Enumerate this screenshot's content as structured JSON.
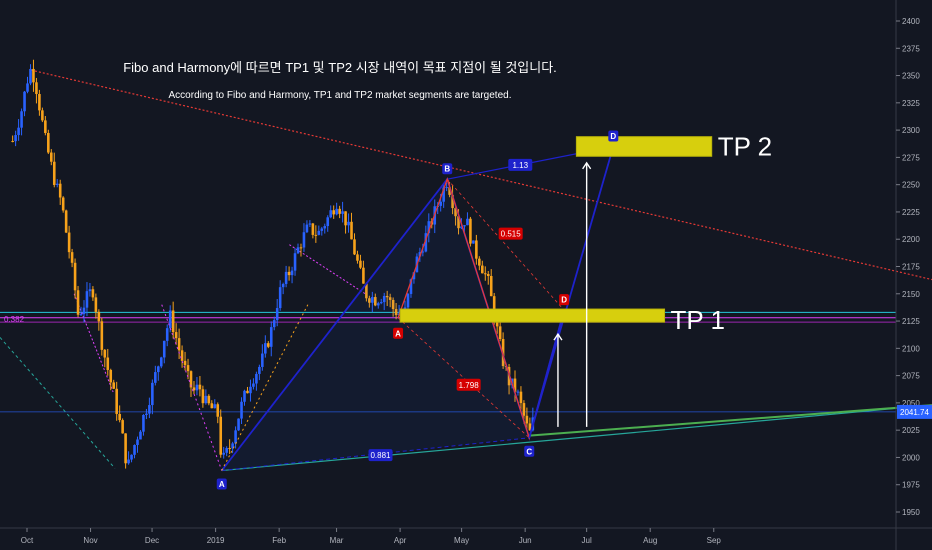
{
  "chart_data": {
    "type": "candlestick",
    "title": "Fibo and Harmony에 따르면 TP1 및 TP2 시장 내역이 목표 지점이 될 것입니다.",
    "subtitle": "According to Fibo and Harmony, TP1 and TP2 market segments are targeted.",
    "xlabel": "",
    "ylabel": "",
    "x_ticks": [
      "Oct",
      "Nov",
      "Dec",
      "2019",
      "Feb",
      "Mar",
      "Apr",
      "May",
      "Jun",
      "Jul",
      "Aug",
      "Sep"
    ],
    "y_ticks": [
      1950,
      1975,
      2000,
      2025,
      2050,
      2075,
      2100,
      2125,
      2150,
      2175,
      2200,
      2225,
      2250,
      2275,
      2300,
      2325,
      2350,
      2375,
      2400
    ],
    "ylim": [
      1940,
      2410
    ],
    "last_price": "2041.74",
    "colors": {
      "up": "#2962ff",
      "down": "#f7a21b",
      "background": "#131722"
    },
    "price_path": [
      [
        "2018-09-24",
        2290
      ],
      [
        "2018-09-28",
        2315
      ],
      [
        "2018-10-01",
        2345
      ],
      [
        "2018-10-03",
        2357
      ],
      [
        "2018-10-05",
        2345
      ],
      [
        "2018-10-10",
        2290
      ],
      [
        "2018-10-15",
        2250
      ],
      [
        "2018-10-18",
        2232
      ],
      [
        "2018-10-24",
        2160
      ],
      [
        "2018-10-26",
        2130
      ],
      [
        "2018-10-30",
        2145
      ],
      [
        "2018-11-02",
        2155
      ],
      [
        "2018-11-07",
        2100
      ],
      [
        "2018-11-12",
        2060
      ],
      [
        "2018-11-16",
        2025
      ],
      [
        "2018-11-19",
        1990
      ],
      [
        "2018-11-23",
        2015
      ],
      [
        "2018-11-29",
        2050
      ],
      [
        "2018-12-04",
        2085
      ],
      [
        "2018-12-07",
        2110
      ],
      [
        "2018-12-10",
        2130
      ],
      [
        "2018-12-14",
        2100
      ],
      [
        "2018-12-18",
        2075
      ],
      [
        "2018-12-21",
        2060
      ],
      [
        "2018-12-24",
        2065
      ],
      [
        "2018-12-27",
        2050
      ],
      [
        "2019-01-02",
        2040
      ],
      [
        "2019-01-04",
        1995
      ],
      [
        "2019-01-08",
        2010
      ],
      [
        "2019-01-14",
        2050
      ],
      [
        "2019-01-18",
        2070
      ],
      [
        "2019-01-23",
        2085
      ],
      [
        "2019-01-28",
        2115
      ],
      [
        "2019-02-01",
        2150
      ],
      [
        "2019-02-06",
        2170
      ],
      [
        "2019-02-11",
        2195
      ],
      [
        "2019-02-15",
        2210
      ],
      [
        "2019-02-20",
        2205
      ],
      [
        "2019-02-25",
        2220
      ],
      [
        "2019-03-01",
        2235
      ],
      [
        "2019-03-06",
        2215
      ],
      [
        "2019-03-11",
        2180
      ],
      [
        "2019-03-15",
        2150
      ],
      [
        "2019-03-20",
        2145
      ],
      [
        "2019-03-25",
        2150
      ],
      [
        "2019-03-29",
        2135
      ],
      [
        "2019-04-03",
        2130
      ],
      [
        "2019-04-08",
        2175
      ],
      [
        "2019-04-12",
        2195
      ],
      [
        "2019-04-17",
        2220
      ],
      [
        "2019-04-22",
        2245
      ],
      [
        "2019-04-24",
        2255
      ],
      [
        "2019-04-26",
        2240
      ],
      [
        "2019-04-30",
        2210
      ],
      [
        "2019-05-03",
        2220
      ],
      [
        "2019-05-07",
        2190
      ],
      [
        "2019-05-10",
        2180
      ],
      [
        "2019-05-14",
        2160
      ],
      [
        "2019-05-17",
        2130
      ],
      [
        "2019-05-21",
        2090
      ],
      [
        "2019-05-24",
        2070
      ],
      [
        "2019-05-28",
        2060
      ],
      [
        "2019-05-31",
        2040
      ],
      [
        "2019-06-03",
        2020
      ],
      [
        "2019-06-06",
        2041.74
      ]
    ],
    "levels": [
      {
        "label": "0.382",
        "value": 2127
      }
    ],
    "harmonic_points": [
      {
        "label": "A",
        "date": "2019-01-04",
        "price": 1988
      },
      {
        "label": "B",
        "date": "2019-04-24",
        "price": 2255
      },
      {
        "label": "A",
        "date": "2019-03-31",
        "price": 2128
      },
      {
        "label": "C",
        "date": "2019-06-03",
        "price": 2018
      },
      {
        "label": "D",
        "date": "2019-06-20",
        "price": 2135
      },
      {
        "label": "D",
        "date": "2019-07-14",
        "price": 2285
      }
    ],
    "ratios": [
      {
        "label": "1.13"
      },
      {
        "label": "0.515"
      },
      {
        "label": "1.798"
      },
      {
        "label": "0.881"
      }
    ],
    "targets": [
      {
        "label": "TP 1",
        "low": 2124,
        "high": 2136
      },
      {
        "label": "TP 2",
        "low": 2276,
        "high": 2294
      }
    ]
  }
}
